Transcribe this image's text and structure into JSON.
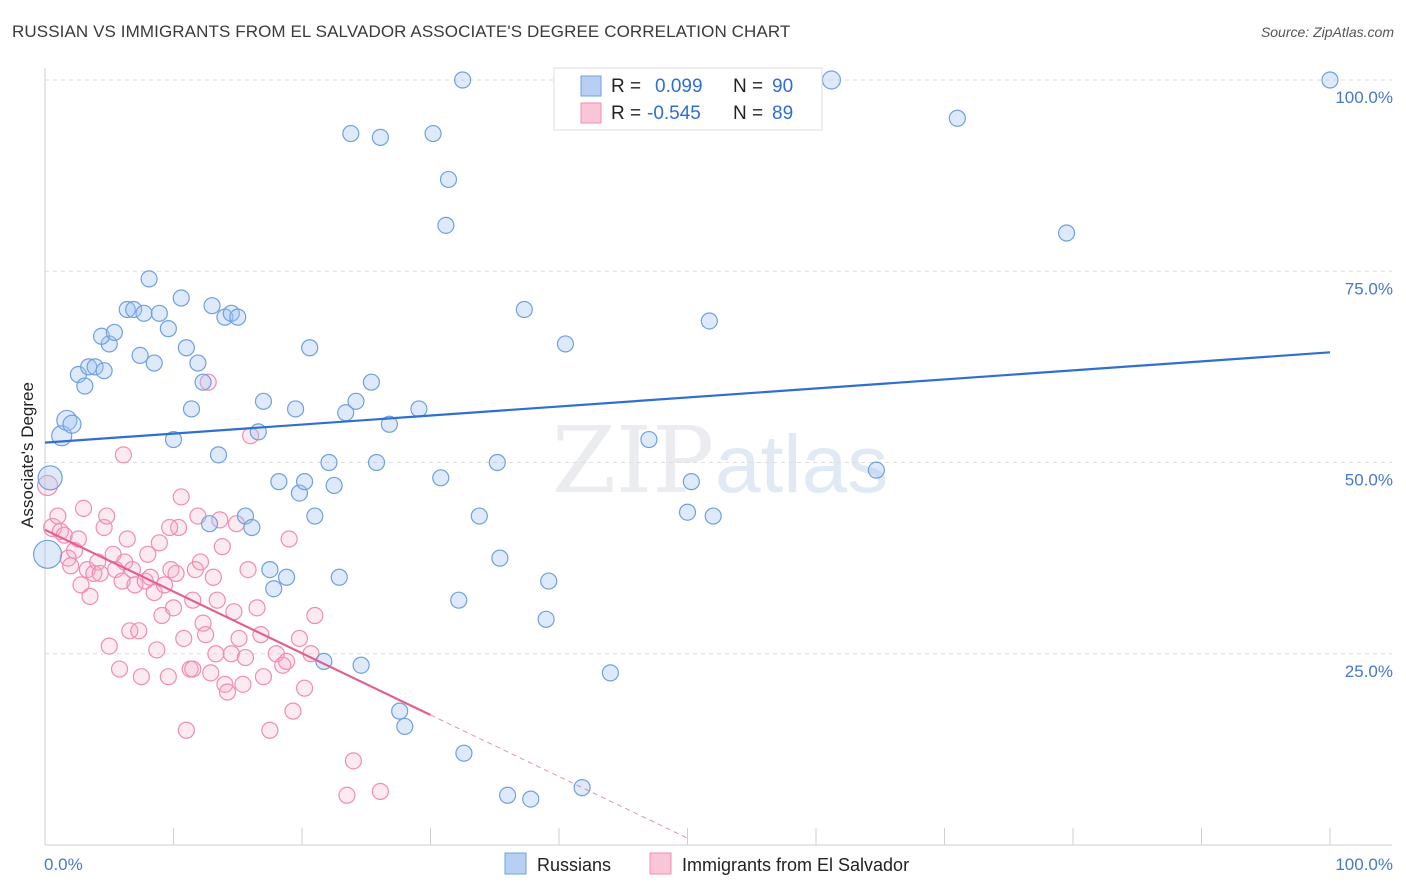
{
  "title": "RUSSIAN VS IMMIGRANTS FROM EL SALVADOR ASSOCIATE'S DEGREE CORRELATION CHART",
  "source": "Source: ZipAtlas.com",
  "watermark": {
    "part1": "ZIP",
    "part2": "atlas"
  },
  "legend_top": {
    "rows": [
      {
        "r_label": "R =",
        "r_value": "0.099",
        "n_label": "N =",
        "n_value": "90"
      },
      {
        "r_label": "R =",
        "r_value": "-0.545",
        "n_label": "N =",
        "n_value": "89"
      }
    ]
  },
  "colors": {
    "russians": "#6fa0e0",
    "russians_fill": "rgba(160,195,240,0.35)",
    "russians_line": "#2f6fd0",
    "elsalvador": "#f08db0",
    "elsalvador_fill": "rgba(245,170,200,0.25)",
    "elsalvador_line": "#e0608f",
    "axis_text": "#4a78c8"
  },
  "chart_data": {
    "type": "scatter",
    "title": "RUSSIAN VS IMMIGRANTS FROM EL SALVADOR ASSOCIATE'S DEGREE CORRELATION CHART",
    "xlabel": "",
    "ylabel": "Associate's Degree",
    "xlim": [
      0,
      100
    ],
    "ylim": [
      0,
      100
    ],
    "x_tick_labels": [
      "0.0%",
      "100.0%"
    ],
    "y_tick_labels": [
      "100.0%",
      "75.0%",
      "50.0%",
      "25.0%"
    ],
    "y_ticks": [
      100,
      75,
      50,
      25
    ],
    "grid": true,
    "legend_placement": "bottom",
    "series": [
      {
        "name": "Russians",
        "r": 0.099,
        "n": 90,
        "trend": {
          "x": [
            0,
            100
          ],
          "y": [
            52.6,
            64.4
          ]
        },
        "points": [
          [
            0.2,
            38,
            14
          ],
          [
            0.4,
            48,
            12
          ],
          [
            1.3,
            53.5,
            10
          ],
          [
            1.7,
            55.5,
            10
          ],
          [
            2.1,
            55,
            9
          ],
          [
            2.6,
            61.5,
            8
          ],
          [
            3.1,
            60,
            8
          ],
          [
            3.4,
            62.5,
            8
          ],
          [
            3.9,
            62.5,
            8
          ],
          [
            4.6,
            62,
            8
          ],
          [
            5.0,
            65.5,
            8
          ],
          [
            4.4,
            66.5,
            8
          ],
          [
            5.4,
            67,
            8
          ],
          [
            6.4,
            70,
            8
          ],
          [
            6.9,
            70,
            8
          ],
          [
            7.4,
            64,
            8
          ],
          [
            7.7,
            69.5,
            8
          ],
          [
            8.1,
            74,
            8
          ],
          [
            8.5,
            63,
            8
          ],
          [
            8.9,
            69.5,
            8
          ],
          [
            9.6,
            67.5,
            8
          ],
          [
            10.0,
            53,
            8
          ],
          [
            10.6,
            71.5,
            8
          ],
          [
            11.0,
            65,
            8
          ],
          [
            11.4,
            57,
            8
          ],
          [
            11.9,
            63,
            8
          ],
          [
            12.3,
            60.5,
            8
          ],
          [
            12.8,
            42,
            8
          ],
          [
            13.0,
            70.5,
            8
          ],
          [
            13.5,
            51,
            8
          ],
          [
            14.0,
            69,
            8
          ],
          [
            14.5,
            69.5,
            8
          ],
          [
            15.0,
            69,
            8
          ],
          [
            15.6,
            43,
            8
          ],
          [
            16.1,
            41.5,
            8
          ],
          [
            16.6,
            54,
            8
          ],
          [
            17.0,
            58,
            8
          ],
          [
            17.5,
            36,
            8
          ],
          [
            17.8,
            33.5,
            8
          ],
          [
            18.2,
            47.5,
            8
          ],
          [
            18.8,
            35,
            8
          ],
          [
            19.5,
            57,
            8
          ],
          [
            19.8,
            46,
            8
          ],
          [
            20.2,
            47.5,
            8
          ],
          [
            20.6,
            65,
            8
          ],
          [
            21.0,
            43,
            8
          ],
          [
            21.7,
            24,
            8
          ],
          [
            22.1,
            50,
            8
          ],
          [
            22.5,
            47,
            8
          ],
          [
            22.9,
            35,
            8
          ],
          [
            23.4,
            56.5,
            8
          ],
          [
            23.8,
            93,
            8
          ],
          [
            24.2,
            58,
            8
          ],
          [
            24.6,
            23.5,
            8
          ],
          [
            25.4,
            60.5,
            8
          ],
          [
            25.8,
            50,
            8
          ],
          [
            26.1,
            92.5,
            8
          ],
          [
            26.8,
            55,
            8
          ],
          [
            27.6,
            17.5,
            8
          ],
          [
            28.0,
            15.5,
            8
          ],
          [
            29.1,
            57,
            8
          ],
          [
            30.2,
            93,
            8
          ],
          [
            30.8,
            48,
            8
          ],
          [
            31.4,
            87,
            8
          ],
          [
            31.2,
            81,
            8
          ],
          [
            32.2,
            32,
            8
          ],
          [
            32.6,
            12,
            8
          ],
          [
            32.5,
            100,
            8
          ],
          [
            33.8,
            43,
            8
          ],
          [
            35.2,
            50,
            8
          ],
          [
            35.4,
            37.5,
            8
          ],
          [
            36.0,
            6.5,
            8
          ],
          [
            37.3,
            70,
            8
          ],
          [
            37.8,
            6,
            8
          ],
          [
            39.2,
            34.5,
            8
          ],
          [
            39.0,
            29.5,
            8
          ],
          [
            40.5,
            65.5,
            8
          ],
          [
            41.8,
            7.5,
            8
          ],
          [
            44.0,
            22.5,
            8
          ],
          [
            47.0,
            53,
            8
          ],
          [
            50.0,
            43.5,
            8
          ],
          [
            50.3,
            47.5,
            8
          ],
          [
            51.7,
            68.5,
            8
          ],
          [
            52.0,
            43,
            8
          ],
          [
            59.5,
            100,
            9
          ],
          [
            61.2,
            100,
            9
          ],
          [
            64.7,
            49,
            8
          ],
          [
            71.0,
            95,
            8
          ],
          [
            79.5,
            80,
            8
          ],
          [
            100,
            100,
            8
          ]
        ]
      },
      {
        "name": "Immigrants from El Salvador",
        "r": -0.545,
        "n": 89,
        "trend": {
          "x": [
            0,
            30
          ],
          "y": [
            41.2,
            17.0
          ]
        },
        "trend_dashed": {
          "x": [
            30,
            50
          ],
          "y": [
            17.0,
            0.9
          ]
        },
        "points": [
          [
            0.2,
            47,
            10
          ],
          [
            0.6,
            41.5,
            9
          ],
          [
            1.0,
            43,
            8
          ],
          [
            1.2,
            41,
            8
          ],
          [
            1.5,
            40.5,
            8
          ],
          [
            1.8,
            37.5,
            8
          ],
          [
            2.0,
            36.5,
            8
          ],
          [
            2.3,
            38.5,
            8
          ],
          [
            2.6,
            40,
            8
          ],
          [
            2.8,
            34,
            8
          ],
          [
            3.0,
            44,
            8
          ],
          [
            3.3,
            36,
            8
          ],
          [
            3.5,
            32.5,
            8
          ],
          [
            3.8,
            35.5,
            8
          ],
          [
            4.1,
            37,
            8
          ],
          [
            4.3,
            35.5,
            8
          ],
          [
            4.6,
            41.5,
            8
          ],
          [
            4.8,
            43,
            8
          ],
          [
            5.0,
            26,
            8
          ],
          [
            5.3,
            38,
            8
          ],
          [
            5.5,
            36,
            8
          ],
          [
            5.8,
            23,
            8
          ],
          [
            6.0,
            34.5,
            8
          ],
          [
            6.2,
            37,
            8
          ],
          [
            6.4,
            40,
            8
          ],
          [
            6.6,
            28,
            8
          ],
          [
            6.8,
            36,
            8
          ],
          [
            7.0,
            34,
            8
          ],
          [
            7.3,
            28,
            8
          ],
          [
            7.5,
            22,
            8
          ],
          [
            7.8,
            34.5,
            8
          ],
          [
            8.0,
            38,
            8
          ],
          [
            8.2,
            35,
            8
          ],
          [
            8.5,
            33,
            8
          ],
          [
            8.7,
            25.5,
            8
          ],
          [
            8.9,
            39.5,
            8
          ],
          [
            9.1,
            30,
            8
          ],
          [
            9.3,
            34,
            8
          ],
          [
            9.6,
            22,
            8
          ],
          [
            9.8,
            36,
            8
          ],
          [
            10.0,
            31,
            8
          ],
          [
            10.2,
            35.5,
            8
          ],
          [
            10.4,
            41.5,
            8
          ],
          [
            10.6,
            45.5,
            8
          ],
          [
            10.8,
            27,
            8
          ],
          [
            11.0,
            15,
            8
          ],
          [
            11.3,
            23,
            8
          ],
          [
            11.5,
            32,
            8
          ],
          [
            11.7,
            36,
            8
          ],
          [
            11.9,
            43,
            8
          ],
          [
            12.1,
            37,
            8
          ],
          [
            12.3,
            29,
            8
          ],
          [
            12.5,
            27.5,
            8
          ],
          [
            12.7,
            60.5,
            8
          ],
          [
            12.9,
            22.5,
            8
          ],
          [
            13.1,
            35,
            8
          ],
          [
            13.4,
            32,
            8
          ],
          [
            13.6,
            42.5,
            8
          ],
          [
            13.8,
            39,
            8
          ],
          [
            14.0,
            21,
            8
          ],
          [
            14.2,
            20,
            8
          ],
          [
            14.5,
            25,
            8
          ],
          [
            14.7,
            30.5,
            8
          ],
          [
            14.9,
            42,
            8
          ],
          [
            15.1,
            27,
            8
          ],
          [
            15.4,
            21,
            8
          ],
          [
            15.6,
            24.5,
            8
          ],
          [
            15.8,
            36,
            8
          ],
          [
            16.0,
            53.5,
            8
          ],
          [
            16.5,
            31,
            8
          ],
          [
            17.0,
            22,
            8
          ],
          [
            17.5,
            15,
            8
          ],
          [
            18.0,
            25,
            8
          ],
          [
            18.5,
            23.5,
            8
          ],
          [
            19.0,
            40,
            8
          ],
          [
            19.3,
            17.5,
            8
          ],
          [
            19.8,
            27,
            8
          ],
          [
            20.2,
            20.5,
            8
          ],
          [
            20.7,
            25,
            8
          ],
          [
            21.0,
            30,
            8
          ],
          [
            23.5,
            6.5,
            8
          ],
          [
            24.0,
            11,
            8
          ],
          [
            26.1,
            7,
            8
          ],
          [
            11.5,
            23,
            8
          ],
          [
            16.8,
            27.5,
            8
          ],
          [
            18.8,
            24,
            8
          ],
          [
            13.3,
            25,
            8
          ],
          [
            6.1,
            51,
            8
          ],
          [
            9.7,
            41.5,
            8
          ]
        ]
      }
    ]
  },
  "legend_bottom": [
    {
      "name": "Russians"
    },
    {
      "name": "Immigrants from El Salvador"
    }
  ]
}
